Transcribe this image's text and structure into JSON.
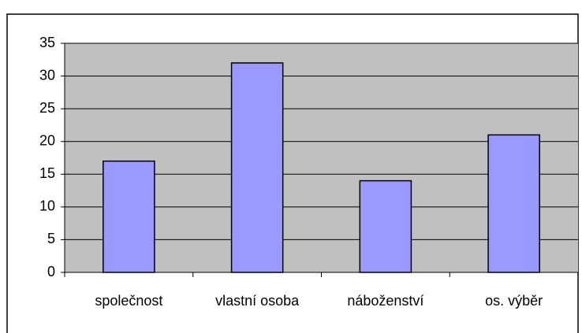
{
  "chart_data": {
    "type": "bar",
    "categories": [
      "společnost",
      "vlastní osoba",
      "náboženství",
      "os. výběr"
    ],
    "values": [
      17,
      32,
      14,
      21
    ],
    "color": "#9999ff",
    "ylim": [
      0,
      35
    ],
    "yticks": [
      0,
      5,
      10,
      15,
      20,
      25,
      30,
      35
    ],
    "grid": true
  }
}
